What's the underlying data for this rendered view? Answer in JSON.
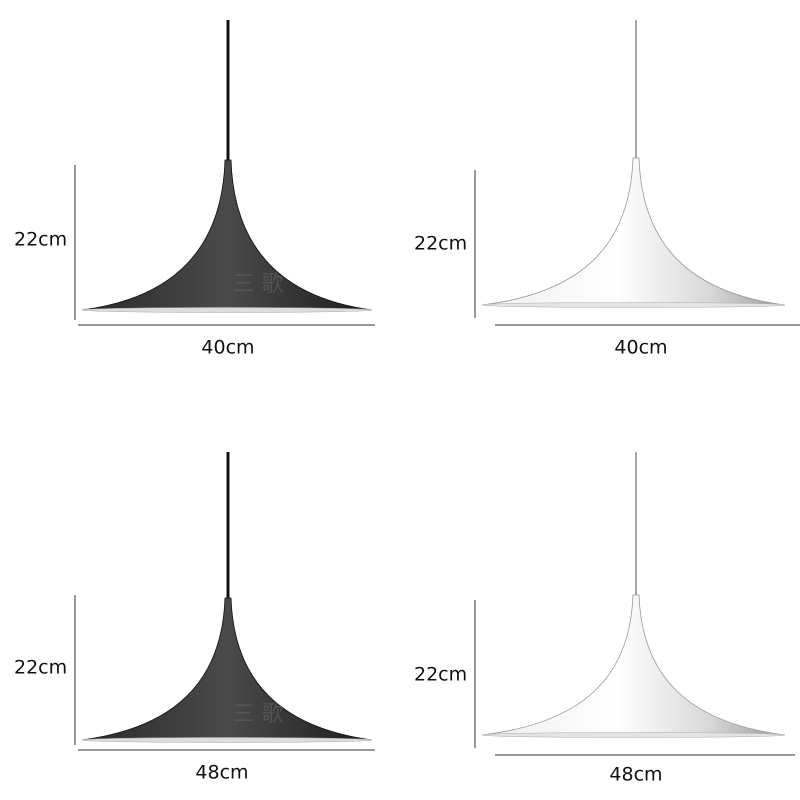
{
  "panels": [
    {
      "height_label": "22cm",
      "width_label": "40cm",
      "watermark": "三 歌"
    },
    {
      "height_label": "22cm",
      "width_label": "40cm"
    },
    {
      "height_label": "22cm",
      "width_label": "48cm",
      "watermark": "三 歌"
    },
    {
      "height_label": "22cm",
      "width_label": "48cm"
    }
  ]
}
